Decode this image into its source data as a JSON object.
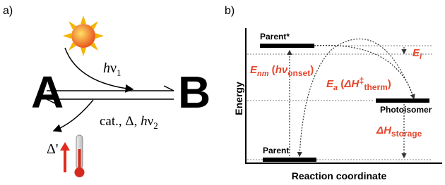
{
  "panel_a": {
    "label": "a)",
    "reactant": "A",
    "product": "B",
    "forward": {
      "h": "h",
      "nu": "ν",
      "sub": "1"
    },
    "backward": {
      "prefix": "cat., Δ, ",
      "h": "h",
      "nu": "ν",
      "sub": "2"
    },
    "heat": "Δ'"
  },
  "panel_b": {
    "label": "b)",
    "y_axis": "Energy",
    "x_axis": "Reaction coordinate",
    "states": {
      "excited": "Parent*",
      "ground": "Parent",
      "isomer": "Photoisomer"
    },
    "e_l": {
      "main": "E",
      "sub": "l"
    },
    "e_nm": {
      "main": "E",
      "sub": "nm",
      "open": " (",
      "h": "h",
      "nu": "ν",
      "sub2": "onset",
      "close": ")"
    },
    "e_a": {
      "main": "E",
      "sub": "a",
      "open": " (",
      "dh": "ΔH",
      "sup": "‡",
      "sub2": "therm",
      "close": ")"
    },
    "storage": {
      "main": "ΔH",
      "sub": "storage"
    }
  }
}
